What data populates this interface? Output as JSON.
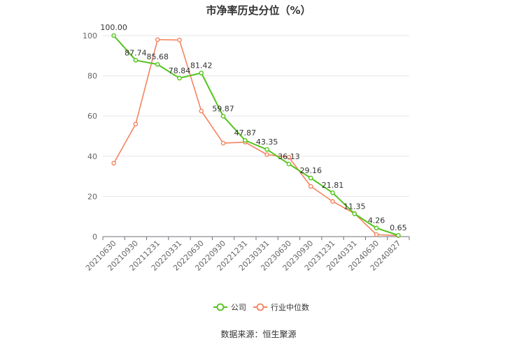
{
  "title": "市净率历史分位（%）",
  "source": "数据来源：恒生聚源",
  "chart_data": {
    "type": "line",
    "title": "市净率历史分位（%）",
    "categories": [
      "20210630",
      "20210930",
      "20211231",
      "20220331",
      "20220630",
      "20220930",
      "20221231",
      "20230331",
      "20230630",
      "20230930",
      "20231231",
      "20240331",
      "20240630",
      "20240827"
    ],
    "ylim": [
      0,
      100
    ],
    "yticks": [
      0,
      20,
      40,
      60,
      80,
      100
    ],
    "grid": true,
    "legend_position": "bottom",
    "series": [
      {
        "name": "公司",
        "color": "#52c41a",
        "values": [
          100.0,
          87.74,
          85.68,
          78.84,
          81.42,
          59.87,
          47.87,
          43.35,
          36.13,
          29.16,
          21.81,
          11.35,
          4.26,
          0.65
        ],
        "labels": [
          "100.00",
          "87.74",
          "85.68",
          "78.84",
          "81.42",
          "59.87",
          "47.87",
          "43.35",
          "36.13",
          "29.16",
          "21.81",
          "11.35",
          "4.26",
          "0.65"
        ]
      },
      {
        "name": "行业中位数",
        "color": "#f4845f",
        "values": [
          36.5,
          56.0,
          98.0,
          97.8,
          62.5,
          46.5,
          47.0,
          40.8,
          39.5,
          25.0,
          17.5,
          11.5,
          1.0,
          0.5
        ]
      }
    ]
  }
}
